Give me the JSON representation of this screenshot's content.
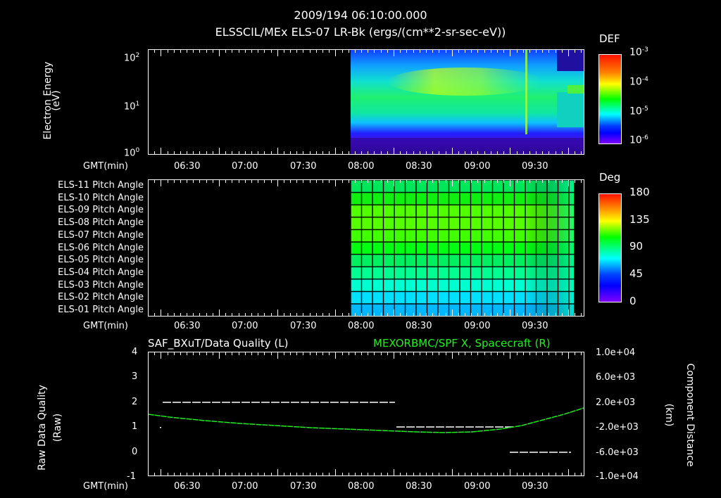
{
  "header": {
    "timestamp": "2009/194 06:10:00.000",
    "subtitle": "ELSSCIL/MEx ELS-07 LR-Bk  (ergs/(cm**2-sr-sec-eV))"
  },
  "panel1": {
    "ylabel_line1": "Electron Energy",
    "ylabel_line2": "(eV)",
    "xlabel": "GMT(min)",
    "yticks": [
      "10",
      "10",
      "10"
    ],
    "ytick_exps": [
      "2",
      "1",
      "0"
    ],
    "xticks": [
      "06:30",
      "07:00",
      "07:30",
      "08:00",
      "08:30",
      "09:00",
      "09:30"
    ],
    "colorbar": {
      "title": "DEF",
      "labels": [
        "10",
        "10",
        "10",
        "10"
      ],
      "exps": [
        "-3",
        "-4",
        "-5",
        "-6"
      ]
    }
  },
  "panel2": {
    "xlabel": "GMT(min)",
    "rows": [
      "ELS-11 Pitch Angle",
      "ELS-10 Pitch Angle",
      "ELS-09 Pitch Angle",
      "ELS-08 Pitch Angle",
      "ELS-07 Pitch Angle",
      "ELS-06 Pitch Angle",
      "ELS-05 Pitch Angle",
      "ELS-04 Pitch Angle",
      "ELS-03 Pitch Angle",
      "ELS-02 Pitch Angle",
      "ELS-01 Pitch Angle"
    ],
    "xticks": [
      "06:30",
      "07:00",
      "07:30",
      "08:00",
      "08:30",
      "09:00",
      "09:30"
    ],
    "colorbar": {
      "title": "Deg",
      "labels": [
        "180",
        "135",
        "90",
        "45",
        "0"
      ]
    }
  },
  "panel3": {
    "left_title": "SAF_BXuT/Data Quality (L)",
    "right_title": "MEXORBMC/SPF X, Spacecraft (R)",
    "right_title_color": "#22ee22",
    "ylabel_left_line1": "Raw Data Quality",
    "ylabel_left_line2": "(Raw)",
    "ylabel_right_line1": "Component Distance",
    "ylabel_right_line2": "(km)",
    "xlabel": "GMT(min)",
    "yticks_left": [
      "4",
      "3",
      "2",
      "1",
      "0",
      "-1"
    ],
    "yticks_right": [
      "1.0e+04",
      "6.0e+03",
      "2.0e+03",
      "-2.0e+03",
      "-6.0e+03",
      "-1.0e+04"
    ],
    "xticks": [
      "06:30",
      "07:00",
      "07:30",
      "08:00",
      "08:30",
      "09:00",
      "09:30"
    ]
  },
  "chart_data": [
    {
      "type": "heatmap",
      "title": "ELSSCIL/MEx ELS-07 LR-Bk (ergs/(cm**2-sr-sec-eV))",
      "xlabel": "GMT(min)",
      "ylabel": "Electron Energy (eV)",
      "x_range": [
        "06:10",
        "09:55"
      ],
      "y_scale": "log",
      "ylim": [
        1,
        150
      ],
      "colorbar": {
        "label": "DEF",
        "scale": "log",
        "range": [
          1e-06,
          0.001
        ]
      },
      "data_start": "07:56",
      "description": "Spectrogram; data present 07:56-09:55; peak flux ~20-50 eV between 08:20-09:10 (~1e-4), spike near 09:23, lower energies drop after 09:35"
    },
    {
      "type": "heatmap",
      "title": "ELS Pitch Angles",
      "xlabel": "GMT(min)",
      "rows": [
        "ELS-11",
        "ELS-10",
        "ELS-09",
        "ELS-08",
        "ELS-07",
        "ELS-06",
        "ELS-05",
        "ELS-04",
        "ELS-03",
        "ELS-02",
        "ELS-01"
      ],
      "colorbar": {
        "label": "Deg",
        "range": [
          0,
          180
        ]
      },
      "data_start": "07:56",
      "data_end": "09:50",
      "approx_values_deg": [
        88,
        95,
        110,
        112,
        108,
        96,
        88,
        78,
        68,
        55,
        48
      ]
    },
    {
      "type": "line",
      "title": "SAF_BXuT/Data Quality (L) ; MEXORBMC/SPF X, Spacecraft (R)",
      "xlabel": "GMT(min)",
      "ylabel_left": "Raw Data Quality (Raw)",
      "ylabel_right": "Component Distance (km)",
      "ylim_left": [
        -1,
        4
      ],
      "ylim_right": [
        -10000,
        10000
      ],
      "series": [
        {
          "name": "Data Quality (L)",
          "color": "#ffffff",
          "x": [
            "06:13",
            "08:17",
            "08:17",
            "09:15",
            "09:15",
            "09:50"
          ],
          "values": [
            2,
            2,
            1,
            1,
            0,
            0
          ]
        },
        {
          "name": "SPF X, Spacecraft (R)",
          "color": "#22ee22",
          "x": [
            "06:10",
            "06:30",
            "07:00",
            "07:30",
            "08:00",
            "08:30",
            "09:00",
            "09:15",
            "09:30",
            "09:55"
          ],
          "values": [
            200,
            -300,
            -1000,
            -1600,
            -2200,
            -2600,
            -2400,
            -1800,
            -600,
            400
          ]
        }
      ]
    }
  ]
}
